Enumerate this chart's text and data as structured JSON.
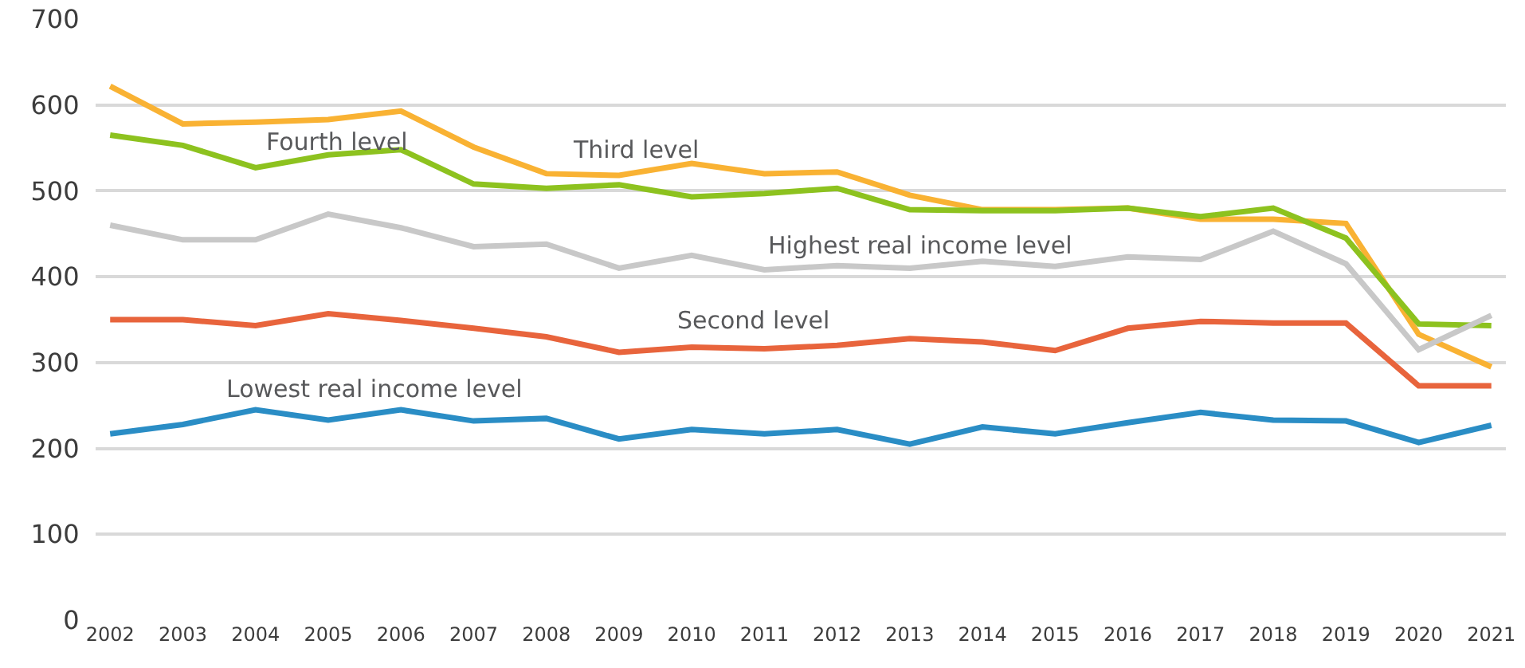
{
  "chart_data": {
    "type": "line",
    "categories": [
      "2002",
      "2003",
      "2004",
      "2005",
      "2006",
      "2007",
      "2008",
      "2009",
      "2010",
      "2011",
      "2012",
      "2013",
      "2014",
      "2015",
      "2016",
      "2017",
      "2018",
      "2019",
      "2020",
      "2021"
    ],
    "series": [
      {
        "name": "Third level",
        "color": "#f9b233",
        "values": [
          622,
          578,
          580,
          583,
          593,
          551,
          520,
          518,
          532,
          520,
          522,
          495,
          478,
          478,
          480,
          467,
          467,
          462,
          333,
          295
        ]
      },
      {
        "name": "Fourth level",
        "color": "#8dc21f",
        "values": [
          565,
          553,
          527,
          542,
          548,
          508,
          503,
          507,
          493,
          497,
          503,
          478,
          477,
          477,
          480,
          470,
          480,
          445,
          345,
          343
        ]
      },
      {
        "name": "Highest real income level",
        "color": "#c8c8c8",
        "values": [
          460,
          443,
          443,
          473,
          457,
          435,
          438,
          410,
          425,
          408,
          413,
          410,
          418,
          412,
          423,
          420,
          453,
          415,
          315,
          355
        ]
      },
      {
        "name": "Second level",
        "color": "#e8643c",
        "values": [
          350,
          350,
          343,
          357,
          349,
          340,
          330,
          312,
          318,
          316,
          320,
          328,
          324,
          314,
          340,
          348,
          346,
          346,
          273,
          273
        ]
      },
      {
        "name": "Lowest real income level",
        "color": "#2a8dc5",
        "values": [
          217,
          228,
          245,
          233,
          245,
          232,
          235,
          211,
          222,
          217,
          222,
          205,
          225,
          217,
          230,
          242,
          233,
          232,
          207,
          227
        ]
      }
    ],
    "ylim": [
      0,
      700
    ],
    "yticks": [
      0,
      100,
      200,
      300,
      400,
      500,
      600,
      700
    ],
    "grid": "y",
    "marker": "none",
    "line_style": "solid"
  }
}
